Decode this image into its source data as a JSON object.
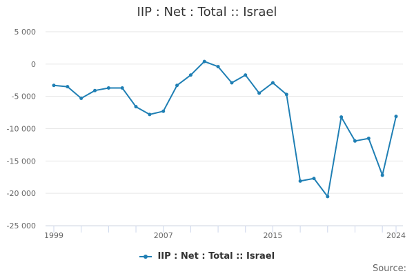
{
  "colors": {
    "series": "#1f7fb4",
    "grid": "#e6e6e6",
    "axis": "#ccd6eb"
  },
  "source_label": "Source:",
  "chart_data": {
    "type": "line",
    "title": "IIP : Net : Total :: Israel",
    "xlabel": "",
    "ylabel": "",
    "xlim": [
      1999,
      2024
    ],
    "ylim": [
      -25000,
      5000
    ],
    "yticks": [
      5000,
      0,
      -5000,
      -10000,
      -15000,
      -20000,
      -25000
    ],
    "ytick_labels": [
      "5 000",
      "0",
      "-5 000",
      "-10 000",
      "-15 000",
      "-20 000",
      "-25 000"
    ],
    "xtick_labels": [
      "1999",
      "2007",
      "2015",
      "2024"
    ],
    "xtick_label_years": [
      1999,
      2007,
      2015,
      2024
    ],
    "grid": true,
    "legend_position": "bottom",
    "series": [
      {
        "name": "IIP : Net : Total :: Israel",
        "x": [
          1999,
          2000,
          2001,
          2002,
          2003,
          2004,
          2005,
          2006,
          2007,
          2008,
          2009,
          2010,
          2011,
          2012,
          2013,
          2014,
          2015,
          2016,
          2017,
          2018,
          2019,
          2020,
          2021,
          2022,
          2023,
          2024
        ],
        "values": [
          -3300,
          -3500,
          -5300,
          -4100,
          -3700,
          -3700,
          -6600,
          -7800,
          -7300,
          -3300,
          -1700,
          400,
          -400,
          -2900,
          -1700,
          -4500,
          -2900,
          -4700,
          -18100,
          -17700,
          -20500,
          -8200,
          -11900,
          -11500,
          -17200,
          -8100
        ]
      }
    ]
  }
}
